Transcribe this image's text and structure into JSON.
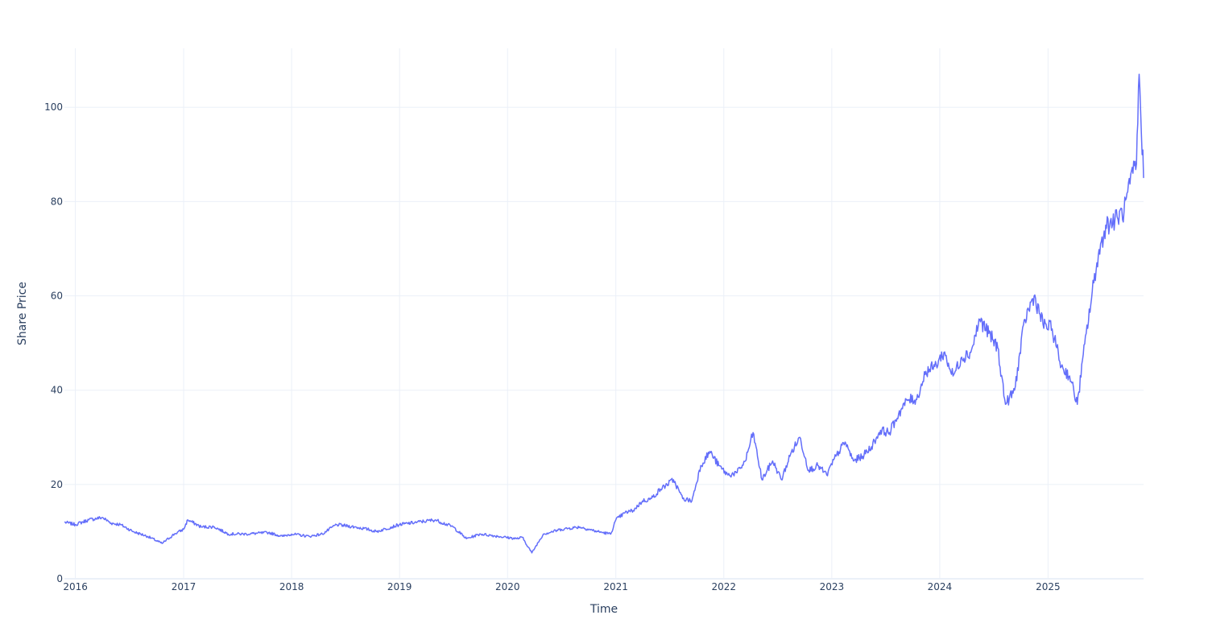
{
  "chart_data": {
    "type": "line",
    "title": "",
    "xlabel": "Time",
    "ylabel": "Share Price",
    "grid": true,
    "legend": "none",
    "colors": {
      "line": "#636efa",
      "grid": "#ebf0f8",
      "text": "#2a3f5f",
      "background": "#ffffff"
    },
    "xlim": [
      "2015-11-25",
      "2025-11-20"
    ],
    "ylim": [
      0,
      112.5
    ],
    "x_ticks": [
      "2016",
      "2017",
      "2018",
      "2019",
      "2020",
      "2021",
      "2022",
      "2023",
      "2024",
      "2025"
    ],
    "y_ticks": [
      "0",
      "20",
      "40",
      "60",
      "80",
      "100"
    ],
    "series": [
      {
        "x": [
          "2015-11-25",
          "2016-01-01",
          "2016-02-15",
          "2016-04-01",
          "2016-05-01",
          "2016-06-01",
          "2016-07-15",
          "2016-09-01",
          "2016-10-20",
          "2016-12-01",
          "2017-01-01",
          "2017-01-15",
          "2017-03-01",
          "2017-04-15",
          "2017-06-01",
          "2017-08-01",
          "2017-10-15",
          "2017-12-01",
          "2018-01-01",
          "2018-03-01",
          "2018-04-15",
          "2018-06-01",
          "2018-08-01",
          "2018-09-15",
          "2018-10-15",
          "2019-01-01",
          "2019-03-01",
          "2019-05-01",
          "2019-07-01",
          "2019-08-15",
          "2019-10-01",
          "2019-12-01",
          "2020-02-01",
          "2020-02-20",
          "2020-03-23",
          "2020-05-01",
          "2020-07-01",
          "2020-09-01",
          "2020-11-01",
          "2020-12-15",
          "2021-01-01",
          "2021-02-01",
          "2021-03-01",
          "2021-04-01",
          "2021-05-01",
          "2021-06-01",
          "2021-07-15",
          "2021-08-15",
          "2021-09-15",
          "2021-10-15",
          "2021-11-15",
          "2021-12-15",
          "2022-01-15",
          "2022-02-15",
          "2022-03-15",
          "2022-04-10",
          "2022-05-10",
          "2022-06-15",
          "2022-07-15",
          "2022-08-15",
          "2022-09-15",
          "2022-10-15",
          "2022-11-15",
          "2022-12-15",
          "2023-01-15",
          "2023-02-15",
          "2023-03-15",
          "2023-04-15",
          "2023-05-15",
          "2023-06-15",
          "2023-07-15",
          "2023-08-15",
          "2023-09-15",
          "2023-10-15",
          "2023-11-15",
          "2023-12-15",
          "2024-01-15",
          "2024-02-15",
          "2024-03-15",
          "2024-04-15",
          "2024-05-15",
          "2024-06-15",
          "2024-07-15",
          "2024-08-10",
          "2024-09-10",
          "2024-10-15",
          "2024-11-15",
          "2024-12-15",
          "2025-01-15",
          "2025-02-15",
          "2025-03-15",
          "2025-04-10",
          "2025-05-10",
          "2025-06-15",
          "2025-07-15",
          "2025-08-15",
          "2025-09-15",
          "2025-10-15",
          "2025-10-27",
          "2025-11-05",
          "2025-11-20"
        ],
        "y": [
          12.0,
          11.5,
          12.5,
          13.0,
          11.8,
          11.5,
          10.0,
          9.0,
          7.5,
          9.5,
          10.5,
          12.5,
          11.0,
          11.0,
          9.5,
          9.5,
          9.8,
          9.0,
          9.5,
          9.0,
          9.5,
          11.5,
          11.0,
          10.5,
          10.0,
          11.5,
          12.0,
          12.5,
          11.0,
          8.5,
          9.5,
          9.0,
          8.5,
          8.8,
          5.5,
          9.5,
          10.5,
          11.0,
          10.0,
          9.5,
          12.5,
          14.0,
          14.5,
          16.5,
          17.0,
          19.0,
          21.0,
          17.0,
          16.5,
          24.0,
          27.0,
          24.0,
          22.0,
          22.5,
          25.0,
          31.0,
          21.0,
          25.0,
          21.0,
          26.5,
          30.0,
          23.0,
          24.0,
          22.0,
          26.0,
          29.0,
          25.0,
          26.0,
          28.0,
          31.5,
          31.0,
          35.0,
          38.0,
          38.0,
          44.0,
          45.0,
          48.0,
          43.0,
          47.0,
          48.0,
          55.0,
          52.0,
          49.0,
          37.0,
          40.0,
          55.0,
          60.0,
          54.0,
          53.0,
          45.0,
          43.0,
          37.0,
          52.0,
          67.0,
          75.0,
          76.0,
          78.0,
          86.0,
          88.0,
          107.0,
          85.0
        ]
      }
    ]
  }
}
